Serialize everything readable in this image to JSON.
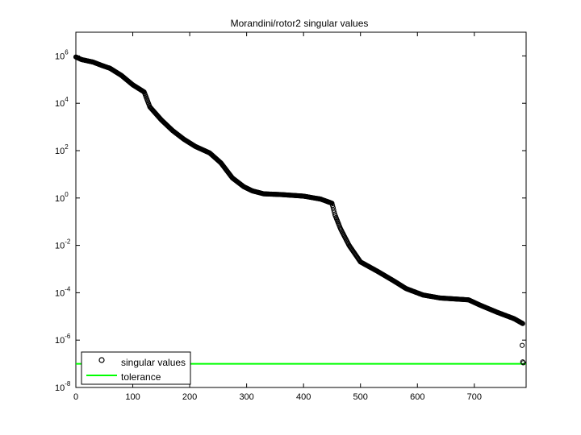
{
  "chart_data": {
    "type": "scatter",
    "title": "Morandini/rotor2 singular values",
    "xlabel": "",
    "ylabel": "",
    "xlim": [
      0,
      791
    ],
    "ylim_exponent": [
      -8,
      7
    ],
    "yscale": "log",
    "x_ticks": [
      "0",
      "100",
      "200",
      "300",
      "400",
      "500",
      "600",
      "700"
    ],
    "y_ticks": [
      {
        "base": "10",
        "exp": "6"
      },
      {
        "base": "10",
        "exp": "4"
      },
      {
        "base": "10",
        "exp": "2"
      },
      {
        "base": "10",
        "exp": "0"
      },
      {
        "base": "10",
        "exp": "-2"
      },
      {
        "base": "10",
        "exp": "-4"
      },
      {
        "base": "10",
        "exp": "-6"
      },
      {
        "base": "10",
        "exp": "-8"
      }
    ],
    "grid": false,
    "legend_position": "bottom-left",
    "series": [
      {
        "name": "singular values",
        "marker": "circle",
        "color": "#000000",
        "knots": [
          [
            0,
            900000
          ],
          [
            10,
            700000
          ],
          [
            30,
            550000
          ],
          [
            45,
            400000
          ],
          [
            60,
            300000
          ],
          [
            80,
            150000
          ],
          [
            100,
            60000
          ],
          [
            120,
            30000
          ],
          [
            130,
            7000
          ],
          [
            150,
            2000
          ],
          [
            170,
            700
          ],
          [
            190,
            300
          ],
          [
            210,
            150
          ],
          [
            235,
            80
          ],
          [
            255,
            30
          ],
          [
            275,
            7
          ],
          [
            295,
            3
          ],
          [
            310,
            2
          ],
          [
            330,
            1.5
          ],
          [
            360,
            1.4
          ],
          [
            400,
            1.2
          ],
          [
            430,
            0.9
          ],
          [
            450,
            0.6
          ],
          [
            455,
            0.2
          ],
          [
            465,
            0.05
          ],
          [
            480,
            0.01
          ],
          [
            500,
            0.002
          ],
          [
            530,
            0.0008
          ],
          [
            560,
            0.0003
          ],
          [
            580,
            0.00015
          ],
          [
            610,
            8e-05
          ],
          [
            640,
            6e-05
          ],
          [
            690,
            5e-05
          ],
          [
            710,
            3e-05
          ],
          [
            740,
            1.5e-05
          ],
          [
            770,
            8e-06
          ],
          [
            785,
            5e-06
          ]
        ],
        "outliers": [
          [
            784,
            6e-07
          ],
          [
            785,
            1.2e-07
          ],
          [
            786,
            1.1e-07
          ]
        ]
      },
      {
        "name": "tolerance",
        "color": "#00ff00",
        "values": [
          1e-07,
          1e-07
        ],
        "x": [
          0,
          791
        ]
      }
    ]
  }
}
